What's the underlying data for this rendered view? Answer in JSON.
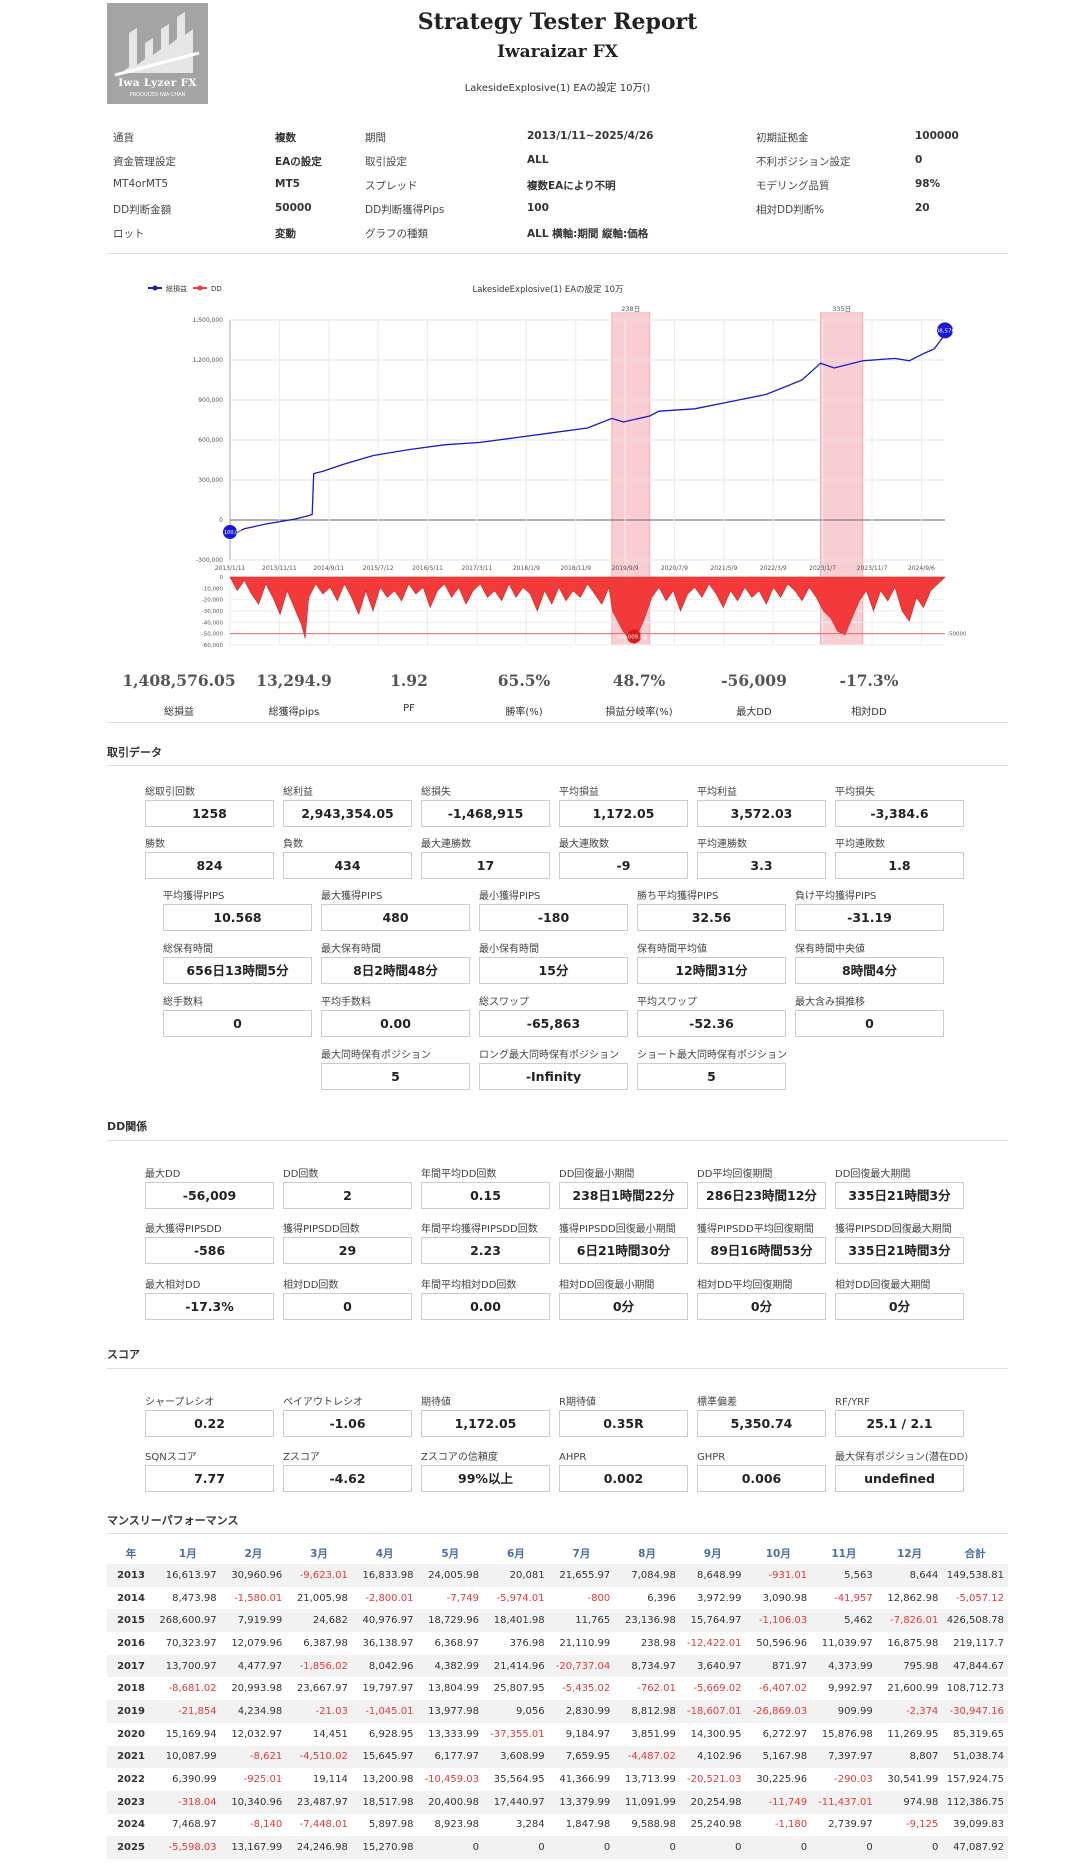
{
  "header": {
    "title": "Strategy Tester Report",
    "subtitle": "Iwaraizar FX",
    "ea_name": "LakesideExplosive(1) EAの設定 10万()",
    "logo_text": "Iwa Lyzer FX",
    "logo_sub": "PRODUCED   IWA CHAN"
  },
  "info": [
    [
      {
        "label": "通貨",
        "value": "複数"
      },
      {
        "label": "期間",
        "value": "2013/1/11~2025/4/26"
      },
      {
        "label": "初期証拠金",
        "value": "100000"
      }
    ],
    [
      {
        "label": "資金管理設定",
        "value": "EAの設定"
      },
      {
        "label": "取引設定",
        "value": "ALL"
      },
      {
        "label": "不利ポジション設定",
        "value": "0"
      }
    ],
    [
      {
        "label": "MT4orMT5",
        "value": "MT5"
      },
      {
        "label": "スプレッド",
        "value": "複数EAにより不明"
      },
      {
        "label": "モデリング品質",
        "value": "98%"
      }
    ],
    [
      {
        "label": "DD判断金額",
        "value": "50000"
      },
      {
        "label": "DD判断獲得Pips",
        "value": "100"
      },
      {
        "label": "相対DD判断%",
        "value": "20"
      }
    ],
    [
      {
        "label": "ロット",
        "value": "変動"
      },
      {
        "label": "グラフの種類",
        "value": "ALL 横軸:期間 縦軸:価格"
      },
      {
        "label": "",
        "value": ""
      }
    ]
  ],
  "chart_data": {
    "type": "area",
    "title": "LakesideExplosive(1) EAの設定 10万",
    "legend": [
      "総損益",
      "DD"
    ],
    "colors": {
      "equity": "#1a1ac8",
      "dd": "#f23a3a",
      "band": "#f9cdd4",
      "band_line": "#f4a9b4"
    },
    "x_ticks": [
      "2013/1/11",
      "2013/11/11",
      "2014/9/11",
      "2015/7/12",
      "2016/5/11",
      "2017/3/11",
      "2018/1/9",
      "2018/11/9",
      "2019/9/9",
      "2020/7/9",
      "2021/5/9",
      "2022/3/9",
      "2023/1/7",
      "2023/11/7",
      "2024/9/6"
    ],
    "y_ticks": [
      "1,500,000",
      "1,200,000",
      "900,000",
      "600,000",
      "300,000",
      "0",
      "-300,000"
    ],
    "ylim": [
      -300000,
      1500000
    ],
    "dd_ticks": [
      "0",
      "-10,000",
      "-20,000",
      "-30,000",
      "-40,000",
      "-50,000",
      "-60,000"
    ],
    "dd_ylim": [
      -60000,
      0
    ],
    "dd_threshold_label": "-50000",
    "band_labels": [
      "238日",
      "335日"
    ],
    "bands": [
      {
        "from": 0.534,
        "to": 0.587
      },
      {
        "from": 0.826,
        "to": 0.885
      }
    ],
    "start_label": "100,000",
    "end_label": "1,408,576.05",
    "dd_min_label": "-56,009.01",
    "equity": [
      [
        0,
        0.1
      ],
      [
        0.02,
        0.13
      ],
      [
        0.05,
        0.15
      ],
      [
        0.09,
        0.17
      ],
      [
        0.11,
        0.185
      ],
      [
        0.115,
        0.19
      ],
      [
        0.117,
        0.36
      ],
      [
        0.13,
        0.37
      ],
      [
        0.16,
        0.4
      ],
      [
        0.2,
        0.435
      ],
      [
        0.25,
        0.46
      ],
      [
        0.3,
        0.48
      ],
      [
        0.35,
        0.49
      ],
      [
        0.4,
        0.51
      ],
      [
        0.45,
        0.53
      ],
      [
        0.5,
        0.55
      ],
      [
        0.534,
        0.59
      ],
      [
        0.55,
        0.575
      ],
      [
        0.587,
        0.6
      ],
      [
        0.6,
        0.62
      ],
      [
        0.65,
        0.63
      ],
      [
        0.7,
        0.66
      ],
      [
        0.75,
        0.69
      ],
      [
        0.8,
        0.75
      ],
      [
        0.826,
        0.82
      ],
      [
        0.845,
        0.8
      ],
      [
        0.885,
        0.83
      ],
      [
        0.93,
        0.84
      ],
      [
        0.95,
        0.83
      ],
      [
        0.97,
        0.86
      ],
      [
        0.985,
        0.88
      ],
      [
        1,
        0.94
      ]
    ],
    "dd": [
      [
        0,
        0
      ],
      [
        0.01,
        0.2
      ],
      [
        0.02,
        0.05
      ],
      [
        0.03,
        0.25
      ],
      [
        0.04,
        0.4
      ],
      [
        0.05,
        0.1
      ],
      [
        0.06,
        0.3
      ],
      [
        0.07,
        0.55
      ],
      [
        0.08,
        0.2
      ],
      [
        0.09,
        0.45
      ],
      [
        0.1,
        0.7
      ],
      [
        0.105,
        0.9
      ],
      [
        0.11,
        0.3
      ],
      [
        0.12,
        0.1
      ],
      [
        0.13,
        0.25
      ],
      [
        0.14,
        0.15
      ],
      [
        0.15,
        0.35
      ],
      [
        0.16,
        0.1
      ],
      [
        0.17,
        0.3
      ],
      [
        0.18,
        0.55
      ],
      [
        0.19,
        0.2
      ],
      [
        0.2,
        0.5
      ],
      [
        0.21,
        0.15
      ],
      [
        0.22,
        0.3
      ],
      [
        0.23,
        0.2
      ],
      [
        0.24,
        0.35
      ],
      [
        0.25,
        0.1
      ],
      [
        0.26,
        0.25
      ],
      [
        0.27,
        0.15
      ],
      [
        0.28,
        0.45
      ],
      [
        0.29,
        0.2
      ],
      [
        0.3,
        0.1
      ],
      [
        0.31,
        0.3
      ],
      [
        0.32,
        0.15
      ],
      [
        0.33,
        0.4
      ],
      [
        0.34,
        0.2
      ],
      [
        0.35,
        0.1
      ],
      [
        0.36,
        0.3
      ],
      [
        0.37,
        0.2
      ],
      [
        0.38,
        0.35
      ],
      [
        0.39,
        0.1
      ],
      [
        0.4,
        0.3
      ],
      [
        0.41,
        0.15
      ],
      [
        0.42,
        0.25
      ],
      [
        0.43,
        0.5
      ],
      [
        0.44,
        0.2
      ],
      [
        0.45,
        0.4
      ],
      [
        0.46,
        0.15
      ],
      [
        0.47,
        0.35
      ],
      [
        0.48,
        0.2
      ],
      [
        0.49,
        0.3
      ],
      [
        0.5,
        0.1
      ],
      [
        0.51,
        0.25
      ],
      [
        0.52,
        0.4
      ],
      [
        0.53,
        0.15
      ],
      [
        0.535,
        0.5
      ],
      [
        0.55,
        0.8
      ],
      [
        0.56,
        0.93
      ],
      [
        0.57,
        0.85
      ],
      [
        0.58,
        0.6
      ],
      [
        0.59,
        0.3
      ],
      [
        0.6,
        0.15
      ],
      [
        0.61,
        0.35
      ],
      [
        0.62,
        0.2
      ],
      [
        0.63,
        0.5
      ],
      [
        0.64,
        0.25
      ],
      [
        0.65,
        0.15
      ],
      [
        0.66,
        0.3
      ],
      [
        0.67,
        0.1
      ],
      [
        0.68,
        0.25
      ],
      [
        0.69,
        0.45
      ],
      [
        0.7,
        0.2
      ],
      [
        0.71,
        0.35
      ],
      [
        0.72,
        0.15
      ],
      [
        0.73,
        0.3
      ],
      [
        0.74,
        0.2
      ],
      [
        0.75,
        0.4
      ],
      [
        0.76,
        0.15
      ],
      [
        0.77,
        0.3
      ],
      [
        0.78,
        0.1
      ],
      [
        0.79,
        0.2
      ],
      [
        0.8,
        0.35
      ],
      [
        0.81,
        0.15
      ],
      [
        0.82,
        0.3
      ],
      [
        0.83,
        0.5
      ],
      [
        0.84,
        0.6
      ],
      [
        0.85,
        0.8
      ],
      [
        0.86,
        0.85
      ],
      [
        0.87,
        0.6
      ],
      [
        0.88,
        0.35
      ],
      [
        0.89,
        0.2
      ],
      [
        0.9,
        0.5
      ],
      [
        0.91,
        0.2
      ],
      [
        0.92,
        0.35
      ],
      [
        0.93,
        0.15
      ],
      [
        0.94,
        0.5
      ],
      [
        0.95,
        0.65
      ],
      [
        0.96,
        0.3
      ],
      [
        0.97,
        0.45
      ],
      [
        0.98,
        0.2
      ],
      [
        0.99,
        0.1
      ],
      [
        1,
        0
      ]
    ]
  },
  "summary": [
    {
      "value": "1,408,576.05",
      "label": "総損益"
    },
    {
      "value": "13,294.9",
      "label": "総獲得pips"
    },
    {
      "value": "1.92",
      "label": "PF"
    },
    {
      "value": "65.5%",
      "label": "勝率(%)"
    },
    {
      "value": "48.7%",
      "label": "損益分岐率(%)"
    },
    {
      "value": "-56,009",
      "label": "最大DD"
    },
    {
      "value": "-17.3%",
      "label": "相対DD"
    }
  ],
  "sections": {
    "trade": "取引データ",
    "dd": "DD関係",
    "score": "スコア",
    "monthly": "マンスリーパフォーマンス"
  },
  "trade": {
    "row1": [
      {
        "label": "総取引回数",
        "value": "1258"
      },
      {
        "label": "総利益",
        "value": "2,943,354.05"
      },
      {
        "label": "総損失",
        "value": "-1,468,915"
      },
      {
        "label": "平均損益",
        "value": "1,172.05"
      },
      {
        "label": "平均利益",
        "value": "3,572.03"
      },
      {
        "label": "平均損失",
        "value": "-3,384.6"
      }
    ],
    "row2": [
      {
        "label": "勝数",
        "value": "824"
      },
      {
        "label": "負数",
        "value": "434"
      },
      {
        "label": "最大連勝数",
        "value": "17"
      },
      {
        "label": "最大連敗数",
        "value": "-9"
      },
      {
        "label": "平均連勝数",
        "value": "3.3"
      },
      {
        "label": "平均連敗数",
        "value": "1.8"
      }
    ],
    "row3": [
      {
        "label": "平均獲得PIPS",
        "value": "10.568"
      },
      {
        "label": "最大獲得PIPS",
        "value": "480"
      },
      {
        "label": "最小獲得PIPS",
        "value": "-180"
      },
      {
        "label": "勝ち平均獲得PIPS",
        "value": "32.56"
      },
      {
        "label": "負け平均獲得PIPS",
        "value": "-31.19"
      }
    ],
    "row4": [
      {
        "label": "総保有時間",
        "value": "656日13時間5分"
      },
      {
        "label": "最大保有時間",
        "value": "8日2時間48分"
      },
      {
        "label": "最小保有時間",
        "value": "15分"
      },
      {
        "label": "保有時間平均値",
        "value": "12時間31分"
      },
      {
        "label": "保有時間中央値",
        "value": "8時間4分"
      }
    ],
    "row5": [
      {
        "label": "総手数料",
        "value": "0"
      },
      {
        "label": "平均手数料",
        "value": "0.00"
      },
      {
        "label": "総スワップ",
        "value": "-65,863"
      },
      {
        "label": "平均スワップ",
        "value": "-52.36"
      },
      {
        "label": "最大含み損推移",
        "value": "0"
      }
    ],
    "row6": [
      {
        "label": "最大同時保有ポジション",
        "value": "5"
      },
      {
        "label": "ロング最大同時保有ポジション",
        "value": "-Infinity"
      },
      {
        "label": "ショート最大同時保有ポジション",
        "value": "5"
      }
    ]
  },
  "dd": {
    "row1": [
      {
        "label": "最大DD",
        "value": "-56,009"
      },
      {
        "label": "DD回数",
        "value": "2"
      },
      {
        "label": "年間平均DD回数",
        "value": "0.15"
      },
      {
        "label": "DD回復最小期間",
        "value": "238日1時間22分"
      },
      {
        "label": "DD平均回復期間",
        "value": "286日23時間12分"
      },
      {
        "label": "DD回復最大期間",
        "value": "335日21時間3分"
      }
    ],
    "row2": [
      {
        "label": "最大獲得PIPSDD",
        "value": "-586"
      },
      {
        "label": "獲得PIPSDD回数",
        "value": "29"
      },
      {
        "label": "年間平均獲得PIPSDD回数",
        "value": "2.23"
      },
      {
        "label": "獲得PIPSDD回復最小期間",
        "value": "6日21時間30分"
      },
      {
        "label": "獲得PIPSDD平均回復期間",
        "value": "89日16時間53分"
      },
      {
        "label": "獲得PIPSDD回復最大期間",
        "value": "335日21時間3分"
      }
    ],
    "row3": [
      {
        "label": "最大相対DD",
        "value": "-17.3%"
      },
      {
        "label": "相対DD回数",
        "value": "0"
      },
      {
        "label": "年間平均相対DD回数",
        "value": "0.00"
      },
      {
        "label": "相対DD回復最小期間",
        "value": "0分"
      },
      {
        "label": "相対DD平均回復期間",
        "value": "0分"
      },
      {
        "label": "相対DD回復最大期間",
        "value": "0分"
      }
    ]
  },
  "score": {
    "row1": [
      {
        "label": "シャープレシオ",
        "value": "0.22"
      },
      {
        "label": "ペイアウトレシオ",
        "value": "-1.06"
      },
      {
        "label": "期待値",
        "value": "1,172.05"
      },
      {
        "label": "R期待値",
        "value": "0.35R"
      },
      {
        "label": "標準偏差",
        "value": "5,350.74"
      },
      {
        "label": "RF/YRF",
        "value": "25.1 / 2.1"
      }
    ],
    "row2": [
      {
        "label": "SQNスコア",
        "value": "7.77"
      },
      {
        "label": "Zスコア",
        "value": "-4.62"
      },
      {
        "label": "Zスコアの信頼度",
        "value": "99%以上"
      },
      {
        "label": "AHPR",
        "value": "0.002"
      },
      {
        "label": "GHPR",
        "value": "0.006"
      },
      {
        "label": "最大保有ポジション(潜在DD)",
        "value": "undefined"
      }
    ]
  },
  "monthly": {
    "headers": [
      "年",
      "1月",
      "2月",
      "3月",
      "4月",
      "5月",
      "6月",
      "7月",
      "8月",
      "9月",
      "10月",
      "11月",
      "12月",
      "合計"
    ],
    "rows": [
      [
        "2013",
        "16,613.97",
        "30,960.96",
        "-9,623.01",
        "16,833.98",
        "24,005.98",
        "20,081",
        "21,655.97",
        "7,084.98",
        "8,648.99",
        "-931.01",
        "5,563",
        "8,644",
        "149,538.81"
      ],
      [
        "2014",
        "8,473.98",
        "-1,580.01",
        "21,005.98",
        "-2,800.01",
        "-7,749",
        "-5,974.01",
        "-800",
        "6,396",
        "3,972.99",
        "3,090.98",
        "-41,957",
        "12,862.98",
        "-5,057.12"
      ],
      [
        "2015",
        "268,600.97",
        "7,919.99",
        "24,682",
        "40,976.97",
        "18,729.96",
        "18,401.98",
        "11,765",
        "23,136.98",
        "15,764.97",
        "-1,106.03",
        "5,462",
        "-7,826.01",
        "426,508.78"
      ],
      [
        "2016",
        "70,323.97",
        "12,079.96",
        "6,387.98",
        "36,138.97",
        "6,368.97",
        "376.98",
        "21,110.99",
        "238.98",
        "-12,422.01",
        "50,596.96",
        "11,039.97",
        "16,875.98",
        "219,117.7"
      ],
      [
        "2017",
        "13,700.97",
        "4,477.97",
        "-1,856.02",
        "8,042.96",
        "4,382.99",
        "21,414.96",
        "-20,737.04",
        "8,734.97",
        "3,640.97",
        "871.97",
        "4,373.99",
        "795.98",
        "47,844.67"
      ],
      [
        "2018",
        "-8,681.02",
        "20,993.98",
        "23,667.97",
        "19,797.97",
        "13,804.99",
        "25,807.95",
        "-5,435.02",
        "-762.01",
        "-5,669.02",
        "-6,407.02",
        "9,992.97",
        "21,600.99",
        "108,712.73"
      ],
      [
        "2019",
        "-21,854",
        "4,234.98",
        "-21.03",
        "-1,045.01",
        "13,977.98",
        "9,056",
        "2,830.99",
        "8,812.98",
        "-18,607.01",
        "-26,869.03",
        "909.99",
        "-2,374",
        "-30,947.16"
      ],
      [
        "2020",
        "15,169.94",
        "12,032.97",
        "14,451",
        "6,928.95",
        "13,333.99",
        "-37,355.01",
        "9,184.97",
        "3,851.99",
        "14,300.95",
        "6,272.97",
        "15,876.98",
        "11,269.95",
        "85,319.65"
      ],
      [
        "2021",
        "10,087.99",
        "-8,621",
        "-4,510.02",
        "15,645.97",
        "6,177.97",
        "3,608.99",
        "7,659.95",
        "-4,487.02",
        "4,102.96",
        "5,167.98",
        "7,397.97",
        "8,807",
        "51,038.74"
      ],
      [
        "2022",
        "6,390.99",
        "-925.01",
        "19,114",
        "13,200.98",
        "-10,459.03",
        "35,564.95",
        "41,366.99",
        "13,713.99",
        "-20,521.03",
        "30,225.96",
        "-290.03",
        "30,541.99",
        "157,924.75"
      ],
      [
        "2023",
        "-318.04",
        "10,340.96",
        "23,487.97",
        "18,517.98",
        "20,400.98",
        "17,440.97",
        "13,379.99",
        "11,091.99",
        "20,254.98",
        "-11,749",
        "-11,437.01",
        "974.98",
        "112,386.75"
      ],
      [
        "2024",
        "7,468.97",
        "-8,140",
        "-7,448.01",
        "5,897.98",
        "8,923.98",
        "3,284",
        "1,847.98",
        "9,588.98",
        "25,240.98",
        "-1,180",
        "2,739.97",
        "-9,125",
        "39,099.83"
      ],
      [
        "2025",
        "-5,598.03",
        "13,167.99",
        "24,246.98",
        "15,270.98",
        "0",
        "0",
        "0",
        "0",
        "0",
        "0",
        "0",
        "0",
        "47,087.92"
      ]
    ]
  }
}
